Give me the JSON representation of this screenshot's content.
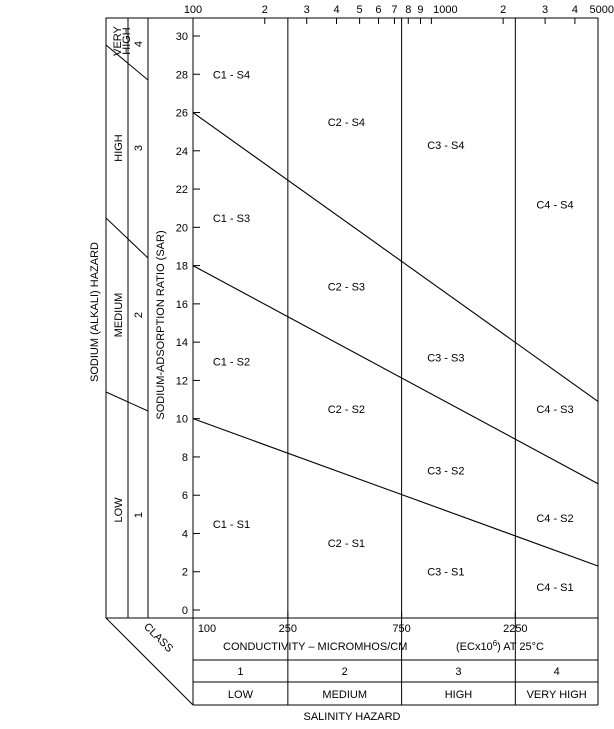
{
  "diagram": {
    "side_title": "SODIUM (ALKALI) HAZARD",
    "y_axis_label": "SODIUM-ADSORPTION RATIO (SAR)",
    "x_axis_label": "CONDUCTIVITY – MICROMHOS/CM",
    "x_axis_units": "(ECx10",
    "x_axis_units_sup": "6",
    "x_axis_units_tail": ") AT 25°C",
    "salinity_title": "SALINITY HAZARD",
    "class_label": "CLASS",
    "sodium_classes": [
      {
        "number": "1",
        "name": "LOW"
      },
      {
        "number": "2",
        "name": "MEDIUM"
      },
      {
        "number": "3",
        "name": "HIGH"
      },
      {
        "number": "4",
        "name_line1": "VERY",
        "name_line2": "HIGH"
      }
    ],
    "salinity_classes": [
      {
        "number": "1",
        "name": "LOW"
      },
      {
        "number": "2",
        "name": "MEDIUM"
      },
      {
        "number": "3",
        "name": "HIGH"
      },
      {
        "number": "4",
        "name": "VERY HIGH"
      }
    ],
    "top_ticks": [
      {
        "value": 100,
        "label": "100"
      },
      {
        "value": 200,
        "label": "2"
      },
      {
        "value": 300,
        "label": "3"
      },
      {
        "value": 400,
        "label": "4"
      },
      {
        "value": 500,
        "label": "5"
      },
      {
        "value": 600,
        "label": "6"
      },
      {
        "value": 700,
        "label": "7"
      },
      {
        "value": 800,
        "label": "8"
      },
      {
        "value": 900,
        "label": "9"
      },
      {
        "value": 1000,
        "label": "1000"
      },
      {
        "value": 2000,
        "label": "2"
      },
      {
        "value": 3000,
        "label": "3"
      },
      {
        "value": 4000,
        "label": "4"
      },
      {
        "value": 5000,
        "label": "5000"
      }
    ],
    "bottom_ticks": [
      {
        "value": 100,
        "label": "100"
      },
      {
        "value": 250,
        "label": "250"
      },
      {
        "value": 750,
        "label": "750"
      },
      {
        "value": 2250,
        "label": "2250"
      }
    ],
    "y_ticks": [
      "0",
      "2",
      "4",
      "6",
      "8",
      "10",
      "12",
      "14",
      "16",
      "18",
      "20",
      "22",
      "24",
      "26",
      "28",
      "30"
    ],
    "zones": [
      {
        "label": "C1 - S4",
        "ec": 145,
        "sar": 28
      },
      {
        "label": "C1 - S3",
        "ec": 145,
        "sar": 20.5
      },
      {
        "label": "C1 - S2",
        "ec": 145,
        "sar": 13
      },
      {
        "label": "C1 - S1",
        "ec": 145,
        "sar": 4.5
      },
      {
        "label": "C2 - S4",
        "ec": 440,
        "sar": 25.5
      },
      {
        "label": "C2 - S3",
        "ec": 440,
        "sar": 16.9
      },
      {
        "label": "C2 - S2",
        "ec": 440,
        "sar": 10.5
      },
      {
        "label": "C2 - S1",
        "ec": 440,
        "sar": 3.5
      },
      {
        "label": "C3 - S4",
        "ec": 1150,
        "sar": 24.3
      },
      {
        "label": "C3 - S3",
        "ec": 1150,
        "sar": 13.2
      },
      {
        "label": "C3 - S2",
        "ec": 1150,
        "sar": 7.3
      },
      {
        "label": "C3 - S1",
        "ec": 1150,
        "sar": 2
      },
      {
        "label": "C4 - S4",
        "ec": 3300,
        "sar": 21.2
      },
      {
        "label": "C4 - S3",
        "ec": 3300,
        "sar": 10.5
      },
      {
        "label": "C4 - S2",
        "ec": 3300,
        "sar": 4.8
      },
      {
        "label": "C4 - S1",
        "ec": 3300,
        "sar": 1.2
      }
    ],
    "boundary_lines": [
      {
        "name": "S1-S2",
        "from": {
          "ec": 100,
          "sar": 10
        },
        "to": {
          "ec": 5000,
          "sar": 2.3
        }
      },
      {
        "name": "S2-S3",
        "from": {
          "ec": 100,
          "sar": 18
        },
        "to": {
          "ec": 5000,
          "sar": 6.6
        }
      },
      {
        "name": "S3-S4",
        "from": {
          "ec": 100,
          "sar": 26
        },
        "to": {
          "ec": 5000,
          "sar": 10.9
        }
      }
    ],
    "salinity_boundaries": [
      250,
      750,
      2250
    ]
  }
}
